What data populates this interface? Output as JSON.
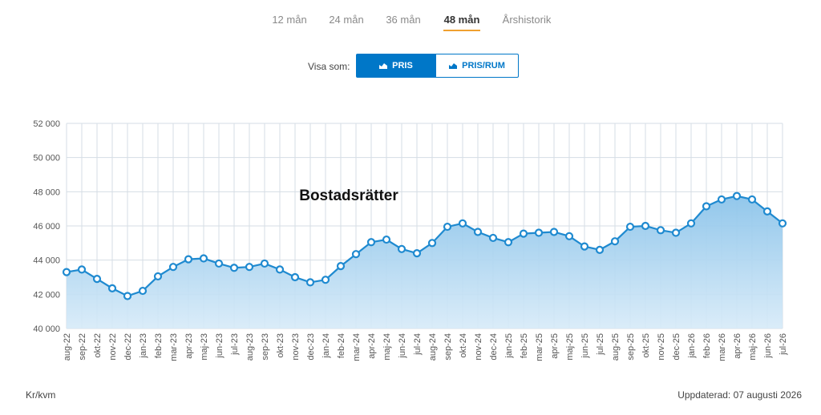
{
  "tabs": [
    {
      "label": "12 mån",
      "active": false
    },
    {
      "label": "24 mån",
      "active": false
    },
    {
      "label": "36 mån",
      "active": false
    },
    {
      "label": "48 mån",
      "active": true
    },
    {
      "label": "Årshistorik",
      "active": false
    }
  ],
  "visa": {
    "label": "Visa som:",
    "buttons": [
      {
        "label": "PRIS",
        "icon": "area-chart-icon",
        "active": true
      },
      {
        "label": "PRIS/RUM",
        "icon": "area-chart-icon",
        "active": false
      }
    ]
  },
  "colors": {
    "accent": "#0077c8",
    "line": "#1f8ad0",
    "tab_underline": "#f0a030"
  },
  "footer": {
    "unit": "Kr/kvm",
    "updated": "Uppdaterad: 07 augusti 2026"
  },
  "chart_data": {
    "type": "area",
    "title": "Bostadsrätter",
    "ylabel": "",
    "xlabel": "",
    "ylim": [
      40000,
      52000
    ],
    "yticks": [
      "40 000",
      "42 000",
      "44 000",
      "46 000",
      "48 000",
      "50 000",
      "52 000"
    ],
    "grid": true,
    "categories": [
      "aug-22",
      "sep-22",
      "okt-22",
      "nov-22",
      "dec-22",
      "jan-23",
      "feb-23",
      "mar-23",
      "apr-23",
      "maj-23",
      "jun-23",
      "jul-23",
      "aug-23",
      "sep-23",
      "okt-23",
      "nov-23",
      "dec-23",
      "jan-24",
      "feb-24",
      "mar-24",
      "apr-24",
      "maj-24",
      "jun-24",
      "jul-24",
      "aug-24",
      "sep-24",
      "okt-24",
      "nov-24",
      "dec-24",
      "jan-25",
      "feb-25",
      "mar-25",
      "apr-25",
      "maj-25",
      "jun-25",
      "jul-25",
      "aug-25",
      "sep-25",
      "okt-25",
      "nov-25",
      "dec-25",
      "jan-26",
      "feb-26",
      "mar-26",
      "apr-26",
      "maj-26",
      "jun-26",
      "jul-26"
    ],
    "series": [
      {
        "values": [
          43300,
          43450,
          42900,
          42350,
          41900,
          42200,
          43050,
          43600,
          44050,
          44100,
          43800,
          43550,
          43600,
          43800,
          43450,
          43000,
          42700,
          42850,
          43650,
          44350,
          45050,
          45200,
          44650,
          44400,
          45000,
          45950,
          46150,
          45650,
          45300,
          45050,
          45550,
          45600,
          45650,
          45400,
          44800,
          44600,
          45100,
          45950,
          46000,
          45750,
          45600,
          46150,
          47150,
          47550,
          47750,
          47550,
          46850,
          46150
        ]
      }
    ]
  }
}
